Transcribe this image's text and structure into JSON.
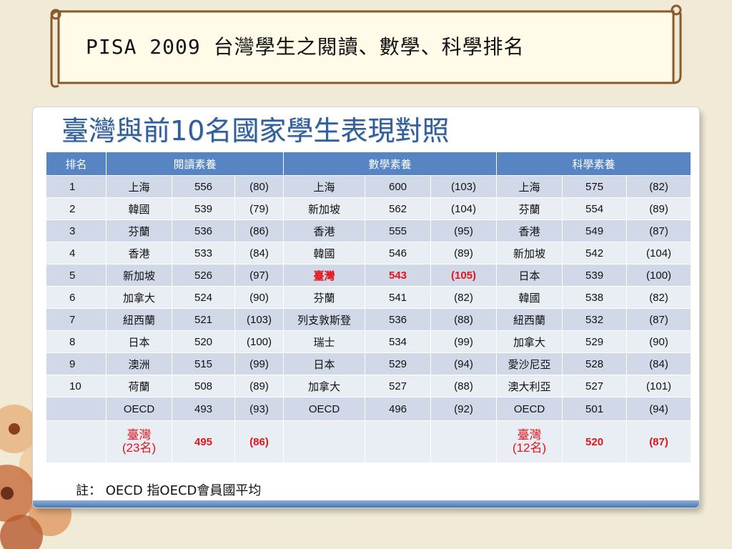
{
  "slide_title": "PISA 2009  台灣學生之閱讀、數學、科學排名",
  "card_title": "臺灣與前10名國家學生表現對照",
  "headers": {
    "rank": "排名",
    "reading": "閱讀素養",
    "math": "數學素養",
    "science": "科學素養"
  },
  "rows": [
    {
      "rank": "1",
      "r": [
        "上海",
        "556",
        "(80)"
      ],
      "m": [
        "上海",
        "600",
        "(103)"
      ],
      "s": [
        "上海",
        "575",
        "(82)"
      ]
    },
    {
      "rank": "2",
      "r": [
        "韓國",
        "539",
        "(79)"
      ],
      "m": [
        "新加坡",
        "562",
        "(104)"
      ],
      "s": [
        "芬蘭",
        "554",
        "(89)"
      ]
    },
    {
      "rank": "3",
      "r": [
        "芬蘭",
        "536",
        "(86)"
      ],
      "m": [
        "香港",
        "555",
        "(95)"
      ],
      "s": [
        "香港",
        "549",
        "(87)"
      ]
    },
    {
      "rank": "4",
      "r": [
        "香港",
        "533",
        "(84)"
      ],
      "m": [
        "韓國",
        "546",
        "(89)"
      ],
      "s": [
        "新加坡",
        "542",
        "(104)"
      ]
    },
    {
      "rank": "5",
      "r": [
        "新加坡",
        "526",
        "(97)"
      ],
      "m": [
        "臺灣",
        "543",
        "(105)"
      ],
      "s": [
        "日本",
        "539",
        "(100)"
      ]
    },
    {
      "rank": "6",
      "r": [
        "加拿大",
        "524",
        "(90)"
      ],
      "m": [
        "芬蘭",
        "541",
        "(82)"
      ],
      "s": [
        "韓國",
        "538",
        "(82)"
      ]
    },
    {
      "rank": "7",
      "r": [
        "紐西蘭",
        "521",
        "(103)"
      ],
      "m": [
        "列支敦斯登",
        "536",
        "(88)"
      ],
      "s": [
        "紐西蘭",
        "532",
        "(87)"
      ]
    },
    {
      "rank": "8",
      "r": [
        "日本",
        "520",
        "(100)"
      ],
      "m": [
        "瑞士",
        "534",
        "(99)"
      ],
      "s": [
        "加拿大",
        "529",
        "(90)"
      ]
    },
    {
      "rank": "9",
      "r": [
        "澳洲",
        "515",
        "(99)"
      ],
      "m": [
        "日本",
        "529",
        "(94)"
      ],
      "s": [
        "愛沙尼亞",
        "528",
        "(84)"
      ]
    },
    {
      "rank": "10",
      "r": [
        "荷蘭",
        "508",
        "(89)"
      ],
      "m": [
        "加拿大",
        "527",
        "(88)"
      ],
      "s": [
        "澳大利亞",
        "527",
        "(101)"
      ]
    }
  ],
  "oecd": {
    "r": [
      "OECD",
      "493",
      "(93)"
    ],
    "m": [
      "OECD",
      "496",
      "(92)"
    ],
    "s": [
      "OECD",
      "501",
      "(94)"
    ]
  },
  "taiwan": {
    "reading": {
      "name": "臺灣",
      "rank": "(23名)",
      "score": "495",
      "sd": "(86)"
    },
    "science": {
      "name": "臺灣",
      "rank": "(12名)",
      "score": "520",
      "sd": "(87)"
    }
  },
  "note": "註： OECD 指OECD會員國平均",
  "colors": {
    "header": "#5784c3",
    "highlight": "#e3141b",
    "title": "#2e5f9c"
  }
}
